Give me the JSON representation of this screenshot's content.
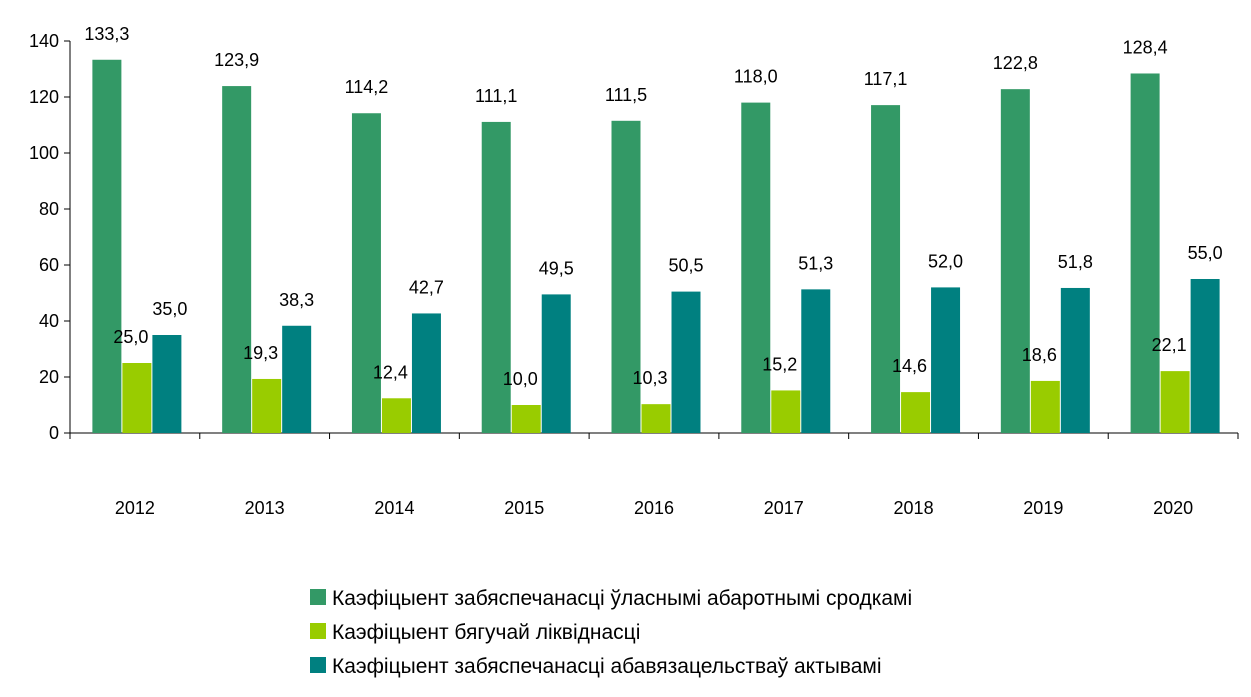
{
  "chart_data": {
    "type": "bar",
    "categories": [
      "2012",
      "2013",
      "2014",
      "2015",
      "2016",
      "2017",
      "2018",
      "2019",
      "2020"
    ],
    "series": [
      {
        "name": "Каэфіцыент забяспечанасці ўласнымі абаротнымі сродкамі",
        "color": "#339966",
        "values": [
          133.3,
          123.9,
          114.2,
          111.1,
          111.5,
          118.0,
          117.1,
          122.8,
          128.4
        ],
        "labels": [
          "133,3",
          "123,9",
          "114,2",
          "111,1",
          "111,5",
          "118,0",
          "117,1",
          "122,8",
          "128,4"
        ]
      },
      {
        "name": "Каэфіцыент бягучай ліквіднасці",
        "color": "#99CC00",
        "values": [
          25.0,
          19.3,
          12.4,
          10.0,
          10.3,
          15.2,
          14.6,
          18.6,
          22.1
        ],
        "labels": [
          "25,0",
          "19,3",
          "12,4",
          "10,0",
          "10,3",
          "15,2",
          "14,6",
          "18,6",
          "22,1"
        ]
      },
      {
        "name": "Каэфіцыент забяспечанасці абавязацельстваў актывамі",
        "color": "#008080",
        "values": [
          35.0,
          38.3,
          42.7,
          49.5,
          50.5,
          51.3,
          52.0,
          51.8,
          55.0
        ],
        "labels": [
          "35,0",
          "38,3",
          "42,7",
          "49,5",
          "50,5",
          "51,3",
          "52,0",
          "51,8",
          "55,0"
        ]
      }
    ],
    "yticks": [
      "0",
      "20",
      "40",
      "60",
      "80",
      "100",
      "120",
      "140"
    ],
    "ylim": [
      0,
      140
    ],
    "grid": false,
    "legend_position": "bottom",
    "title": "",
    "xlabel": "",
    "ylabel": ""
  }
}
